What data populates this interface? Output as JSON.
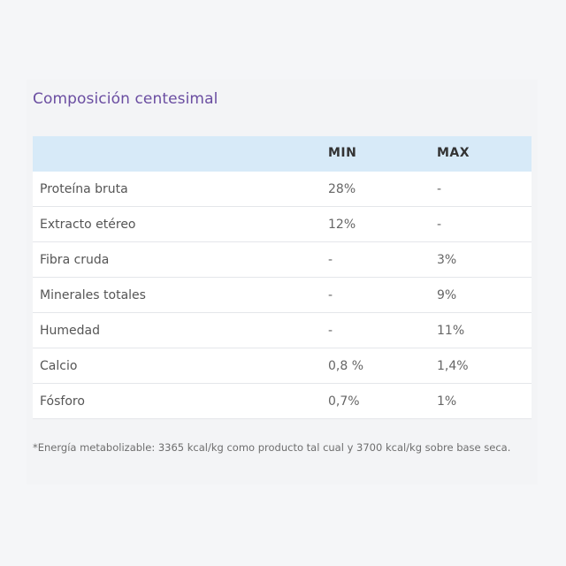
{
  "title": "Composición centesimal",
  "table": {
    "headers": {
      "name": "",
      "min": "MIN",
      "max": "MAX"
    },
    "rows": [
      {
        "name": "Proteína bruta",
        "min": "28%",
        "max": "-"
      },
      {
        "name": "Extracto etéreo",
        "min": "12%",
        "max": "-"
      },
      {
        "name": "Fibra cruda",
        "min": "-",
        "max": "3%"
      },
      {
        "name": "Minerales totales",
        "min": "-",
        "max": "9%"
      },
      {
        "name": "Humedad",
        "min": "-",
        "max": "11%"
      },
      {
        "name": "Calcio",
        "min": "0,8 %",
        "max": "1,4%"
      },
      {
        "name": "Fósforo",
        "min": "0,7%",
        "max": "1%"
      }
    ]
  },
  "footnote": "*Energía metabolizable: 3365 kcal/kg como producto tal cual y 3700 kcal/kg sobre base seca."
}
